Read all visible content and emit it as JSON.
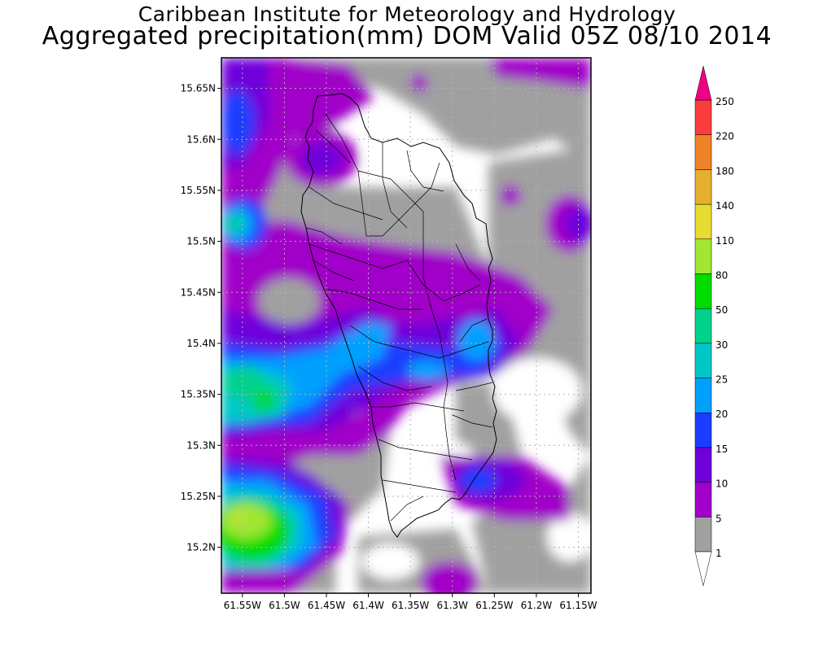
{
  "title_line1": "Caribbean Institute for Meteorology and Hydrology",
  "title_line2": "Aggregated precipitation(mm) DOM Valid 05Z 08/10 2014",
  "map": {
    "lat_labels": [
      "15.65N",
      "15.6N",
      "15.55N",
      "15.5N",
      "15.45N",
      "15.4N",
      "15.35N",
      "15.3N",
      "15.25N",
      "15.2N"
    ],
    "lon_labels": [
      "61.55W",
      "61.5W",
      "61.45W",
      "61.4W",
      "61.35W",
      "61.3W",
      "61.25W",
      "61.2W",
      "61.15W"
    ],
    "lat_values": [
      15.65,
      15.6,
      15.55,
      15.5,
      15.45,
      15.4,
      15.35,
      15.3,
      15.25,
      15.2
    ],
    "lon_values": [
      -61.55,
      -61.5,
      -61.45,
      -61.4,
      -61.35,
      -61.3,
      -61.25,
      -61.2,
      -61.15
    ],
    "region": "Dominica"
  },
  "colorbar": {
    "labels": [
      "1",
      "5",
      "10",
      "15",
      "20",
      "25",
      "30",
      "50",
      "80",
      "110",
      "140",
      "180",
      "220",
      "250"
    ],
    "colors": [
      "#a0a0a0",
      "#a000c8",
      "#6e00dc",
      "#1e3cff",
      "#00a0ff",
      "#00c8c8",
      "#00d28c",
      "#00dc00",
      "#a0e632",
      "#e6dc32",
      "#e6af2d",
      "#f08228",
      "#fa3c3c",
      "#f00082"
    ],
    "under_color": "#ffffff",
    "over_color": "#f00082"
  },
  "colors": {
    "c_gray": "#a0a0a0",
    "c_5": "#a000c8",
    "c_10": "#6e00dc",
    "c_15": "#1e3cff",
    "c_20": "#00a0ff",
    "c_25": "#00c8c8",
    "c_30": "#00d28c",
    "c_50": "#00dc00",
    "c_80": "#a0e632",
    "c_110": "#e6dc32"
  }
}
